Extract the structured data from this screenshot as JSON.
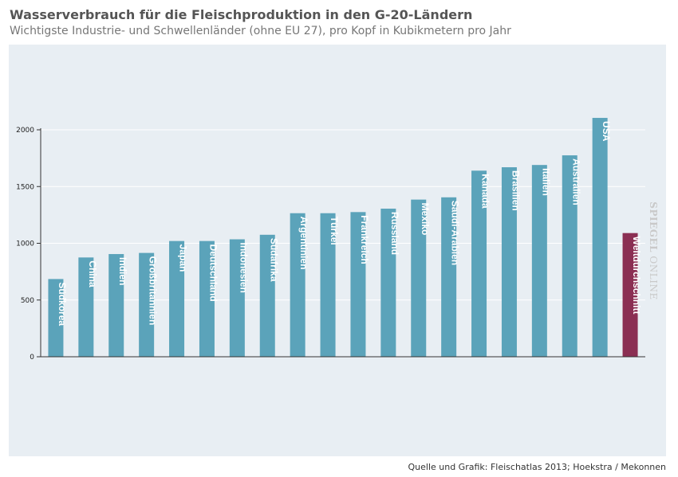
{
  "title": "Wasserverbrauch für die Fleischproduktion in den G-20-Ländern",
  "subtitle": "Wichtigste Industrie- und Schwellenländer (ohne EU 27), pro Kopf in Kubikmetern pro Jahr",
  "source": "Quelle und Grafik: Fleischatlas 2013; Hoekstra / Mekonnen",
  "watermark": {
    "brand": "SPIEGEL",
    "suffix": "ONLINE"
  },
  "colors": {
    "bar": "#5ba3ba",
    "highlight": "#8b2f53",
    "background": "#e8eef3",
    "grid": "#ffffff"
  },
  "chart_data": {
    "type": "bar",
    "orientation": "vertical",
    "categories": [
      "Südkorea",
      "China",
      "Indien",
      "Großbritannien",
      "Japan",
      "Deutschland",
      "Indonesien",
      "Südafrika",
      "Argentinien",
      "Türkei",
      "Frankreich",
      "Russland",
      "Mexiko",
      "Saudi-Arabien",
      "Kanada",
      "Brasilien",
      "Italien",
      "Australien",
      "USA",
      "Weltdurchschnitt"
    ],
    "values": [
      685,
      875,
      905,
      915,
      1020,
      1020,
      1035,
      1075,
      1265,
      1265,
      1275,
      1305,
      1385,
      1405,
      1640,
      1670,
      1690,
      1775,
      2105,
      1090
    ],
    "highlight": "Weltdurchschnitt",
    "ylim": [
      0,
      2200
    ],
    "yticks": [
      0,
      500,
      1000,
      1500,
      2000
    ],
    "grid": true,
    "legend": "none"
  }
}
